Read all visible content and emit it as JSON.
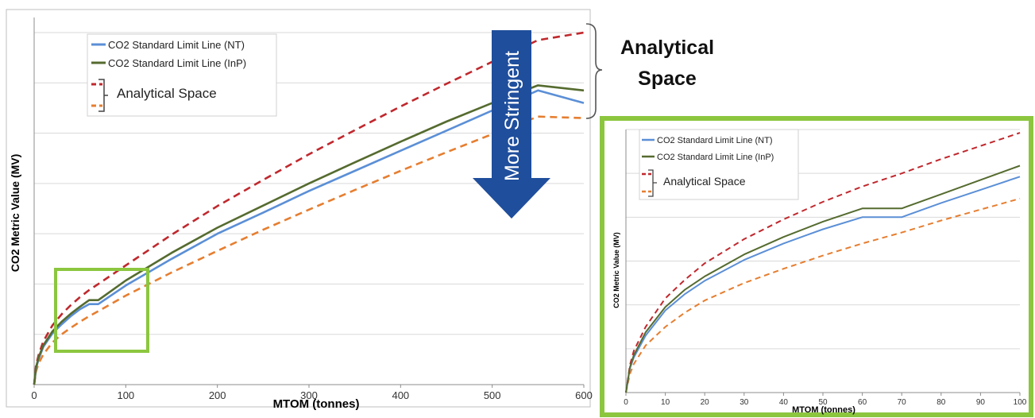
{
  "colors": {
    "nt": "#5b8fd6",
    "inp": "#556b2f",
    "upper": "#c0282d",
    "lower": "#e67e30",
    "zoom_box": "#8cc63f",
    "arrow": "#1f4e9c",
    "grid": "#d9d9d9"
  },
  "annotations": {
    "analytical_space_line1": "Analytical",
    "analytical_space_line2": "Space",
    "more_stringent": "More Stringent"
  },
  "chart_data": [
    {
      "type": "line",
      "xlabel": "MTOM (tonnes)",
      "ylabel": "CO2 Metric Value (MV)",
      "x_ticks": [
        "0",
        "100",
        "200",
        "300",
        "400",
        "500",
        "600"
      ],
      "xlim": [
        0,
        600
      ],
      "ylim": [
        0,
        7.3
      ],
      "y_gridlines": [
        1,
        2,
        3,
        4,
        5,
        6,
        7
      ],
      "y_tick_labels_shown": false,
      "legend": {
        "placement": "top-left",
        "entries": [
          "CO2 Standard Limit Line (NT)",
          "CO2 Standard Limit Line (InP)"
        ],
        "bracket_label": "Analytical Space"
      },
      "series": [
        {
          "name": "CO2 Standard Limit Line (NT)",
          "color_key": "nt",
          "style": "solid",
          "x": [
            0,
            2,
            5,
            10,
            20,
            30,
            40,
            50,
            60,
            70,
            100,
            150,
            200,
            250,
            300,
            350,
            400,
            450,
            500,
            550,
            600
          ],
          "y": [
            0,
            0.32,
            0.52,
            0.75,
            1.02,
            1.2,
            1.36,
            1.5,
            1.6,
            1.6,
            1.97,
            2.5,
            3.0,
            3.42,
            3.85,
            4.25,
            4.65,
            5.05,
            5.45,
            5.85,
            5.6
          ]
        },
        {
          "name": "CO2 Standard Limit Line (InP)",
          "color_key": "inp",
          "style": "solid",
          "x": [
            0,
            2,
            5,
            10,
            20,
            30,
            40,
            50,
            60,
            70,
            100,
            150,
            200,
            250,
            300,
            350,
            400,
            450,
            500,
            550,
            600
          ],
          "y": [
            0,
            0.34,
            0.55,
            0.78,
            1.06,
            1.25,
            1.41,
            1.55,
            1.68,
            1.68,
            2.07,
            2.62,
            3.12,
            3.56,
            4.0,
            4.42,
            4.83,
            5.23,
            5.6,
            5.95,
            5.85
          ]
        },
        {
          "name": "Analytical Space (upper)",
          "color_key": "upper",
          "style": "dashed",
          "x": [
            0,
            2,
            5,
            10,
            20,
            30,
            40,
            50,
            60,
            70,
            100,
            150,
            200,
            250,
            300,
            350,
            400,
            450,
            500,
            550,
            600
          ],
          "y": [
            0,
            0.38,
            0.6,
            0.86,
            1.18,
            1.4,
            1.58,
            1.74,
            1.88,
            2.0,
            2.37,
            2.98,
            3.55,
            4.07,
            4.58,
            5.06,
            5.53,
            5.98,
            6.42,
            6.85,
            7.0
          ]
        },
        {
          "name": "Analytical Space (lower)",
          "color_key": "lower",
          "style": "dashed",
          "x": [
            0,
            2,
            5,
            10,
            20,
            30,
            40,
            50,
            60,
            70,
            100,
            150,
            200,
            250,
            300,
            350,
            400,
            450,
            500,
            550,
            600
          ],
          "y": [
            0,
            0.26,
            0.43,
            0.6,
            0.84,
            1.0,
            1.13,
            1.25,
            1.36,
            1.46,
            1.77,
            2.23,
            2.66,
            3.08,
            3.48,
            3.87,
            4.25,
            4.62,
            4.98,
            5.33,
            5.3
          ]
        }
      ]
    },
    {
      "type": "line",
      "xlabel": "MTOM (tonnes)",
      "ylabel": "CO2 Metric Value (MV)",
      "x_ticks": [
        "0",
        "10",
        "20",
        "30",
        "40",
        "50",
        "60",
        "70",
        "80",
        "90",
        "100"
      ],
      "xlim": [
        0,
        100
      ],
      "ylim": [
        0,
        2.4
      ],
      "y_gridlines": [
        0.4,
        0.8,
        1.2,
        1.6,
        2.0,
        2.4
      ],
      "y_tick_labels_shown": false,
      "legend": {
        "placement": "top-left",
        "entries": [
          "CO2 Standard Limit Line (NT)",
          "CO2 Standard Limit Line (InP)"
        ],
        "bracket_label": "Analytical Space"
      },
      "series": [
        {
          "name": "CO2 Standard Limit Line (NT)",
          "color_key": "nt",
          "style": "solid",
          "x": [
            0,
            1,
            2,
            5,
            10,
            15,
            20,
            30,
            40,
            50,
            60,
            70,
            80,
            90,
            100
          ],
          "y": [
            0,
            0.22,
            0.32,
            0.52,
            0.75,
            0.9,
            1.02,
            1.21,
            1.36,
            1.49,
            1.6,
            1.6,
            1.73,
            1.85,
            1.97
          ]
        },
        {
          "name": "CO2 Standard Limit Line (InP)",
          "color_key": "inp",
          "style": "solid",
          "x": [
            0,
            1,
            2,
            5,
            10,
            15,
            20,
            30,
            40,
            50,
            60,
            70,
            80,
            90,
            100
          ],
          "y": [
            0,
            0.23,
            0.34,
            0.55,
            0.78,
            0.94,
            1.06,
            1.26,
            1.42,
            1.56,
            1.68,
            1.68,
            1.81,
            1.94,
            2.07
          ]
        },
        {
          "name": "Analytical Space (upper)",
          "color_key": "upper",
          "style": "dashed",
          "x": [
            0,
            1,
            2,
            5,
            10,
            15,
            20,
            30,
            40,
            50,
            60,
            70,
            80,
            90,
            100
          ],
          "y": [
            0,
            0.25,
            0.38,
            0.6,
            0.86,
            1.03,
            1.18,
            1.4,
            1.58,
            1.74,
            1.88,
            2.0,
            2.13,
            2.25,
            2.37
          ]
        },
        {
          "name": "Analytical Space (lower)",
          "color_key": "lower",
          "style": "dashed",
          "x": [
            0,
            1,
            2,
            5,
            10,
            15,
            20,
            30,
            40,
            50,
            60,
            70,
            80,
            90,
            100
          ],
          "y": [
            0,
            0.17,
            0.26,
            0.43,
            0.6,
            0.73,
            0.84,
            1.0,
            1.13,
            1.25,
            1.36,
            1.46,
            1.57,
            1.67,
            1.77
          ]
        }
      ]
    }
  ]
}
